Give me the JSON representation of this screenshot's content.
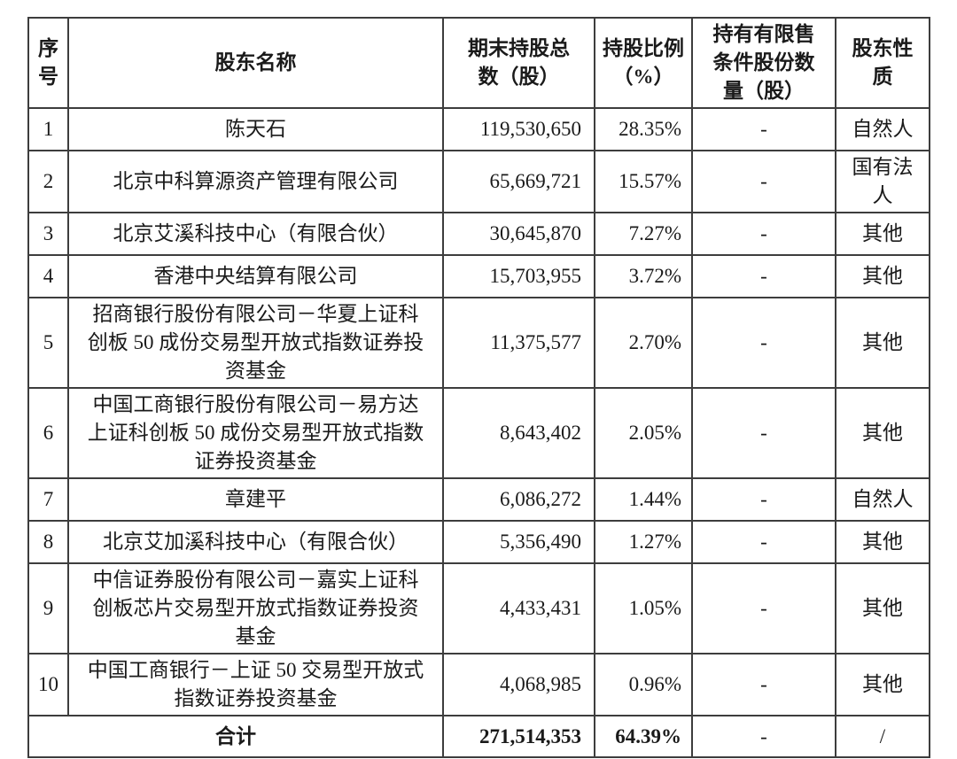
{
  "colors": {
    "background": "#ffffff",
    "text": "#1a1a1a",
    "border": "#3d3d3d"
  },
  "table": {
    "headers": {
      "index": "序号",
      "name": "股东名称",
      "shares": "期末持股总数（股）",
      "ratio": "持股比例（%）",
      "restricted": "持有有限售条件股份数量（股）",
      "nature": "股东性质"
    },
    "rows": [
      {
        "index": "1",
        "name": "陈天石",
        "shares": "119,530,650",
        "ratio": "28.35%",
        "restricted": "-",
        "nature": "自然人"
      },
      {
        "index": "2",
        "name": "北京中科算源资产管理有限公司",
        "shares": "65,669,721",
        "ratio": "15.57%",
        "restricted": "-",
        "nature": "国有法人"
      },
      {
        "index": "3",
        "name": "北京艾溪科技中心（有限合伙）",
        "shares": "30,645,870",
        "ratio": "7.27%",
        "restricted": "-",
        "nature": "其他"
      },
      {
        "index": "4",
        "name": "香港中央结算有限公司",
        "shares": "15,703,955",
        "ratio": "3.72%",
        "restricted": "-",
        "nature": "其他"
      },
      {
        "index": "5",
        "name": "招商银行股份有限公司－华夏上证科创板 50 成份交易型开放式指数证券投资基金",
        "shares": "11,375,577",
        "ratio": "2.70%",
        "restricted": "-",
        "nature": "其他"
      },
      {
        "index": "6",
        "name": "中国工商银行股份有限公司－易方达上证科创板 50 成份交易型开放式指数证券投资基金",
        "shares": "8,643,402",
        "ratio": "2.05%",
        "restricted": "-",
        "nature": "其他"
      },
      {
        "index": "7",
        "name": "章建平",
        "shares": "6,086,272",
        "ratio": "1.44%",
        "restricted": "-",
        "nature": "自然人"
      },
      {
        "index": "8",
        "name": "北京艾加溪科技中心（有限合伙）",
        "shares": "5,356,490",
        "ratio": "1.27%",
        "restricted": "-",
        "nature": "其他"
      },
      {
        "index": "9",
        "name": "中信证券股份有限公司－嘉实上证科创板芯片交易型开放式指数证券投资基金",
        "shares": "4,433,431",
        "ratio": "1.05%",
        "restricted": "-",
        "nature": "其他"
      },
      {
        "index": "10",
        "name": "中国工商银行－上证 50 交易型开放式指数证券投资基金",
        "shares": "4,068,985",
        "ratio": "0.96%",
        "restricted": "-",
        "nature": "其他"
      }
    ],
    "total": {
      "label": "合计",
      "shares": "271,514,353",
      "ratio": "64.39%",
      "restricted": "-",
      "nature": "/"
    }
  }
}
